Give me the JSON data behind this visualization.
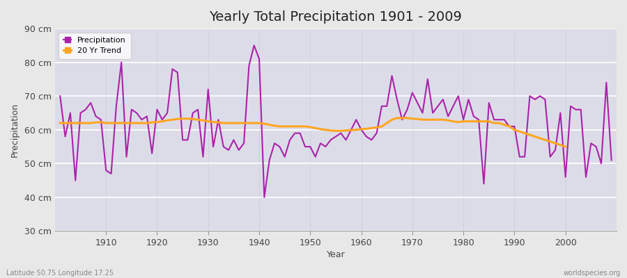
{
  "title": "Yearly Total Precipitation 1901 - 2009",
  "xlabel": "Year",
  "ylabel": "Precipitation",
  "subtitle_left": "Latitude 50.75 Longitude 17.25",
  "subtitle_right": "worldspecies.org",
  "years": [
    1901,
    1902,
    1903,
    1904,
    1905,
    1906,
    1907,
    1908,
    1909,
    1910,
    1911,
    1912,
    1913,
    1914,
    1915,
    1916,
    1917,
    1918,
    1919,
    1920,
    1921,
    1922,
    1923,
    1924,
    1925,
    1926,
    1927,
    1928,
    1929,
    1930,
    1931,
    1932,
    1933,
    1934,
    1935,
    1936,
    1937,
    1938,
    1939,
    1940,
    1941,
    1942,
    1943,
    1944,
    1945,
    1946,
    1947,
    1948,
    1949,
    1950,
    1951,
    1952,
    1953,
    1954,
    1955,
    1956,
    1957,
    1958,
    1959,
    1960,
    1961,
    1962,
    1963,
    1964,
    1965,
    1966,
    1967,
    1968,
    1969,
    1970,
    1971,
    1972,
    1973,
    1974,
    1975,
    1976,
    1977,
    1978,
    1979,
    1980,
    1981,
    1982,
    1983,
    1984,
    1985,
    1986,
    1987,
    1988,
    1989,
    1990,
    1991,
    1992,
    1993,
    1994,
    1995,
    1996,
    1997,
    1998,
    1999,
    2000,
    2001,
    2002,
    2003,
    2004,
    2005,
    2006,
    2007,
    2008,
    2009
  ],
  "precipitation": [
    70,
    58,
    65,
    45,
    65,
    66,
    68,
    64,
    63,
    48,
    47,
    67,
    80,
    52,
    66,
    65,
    63,
    64,
    53,
    66,
    63,
    65,
    78,
    77,
    57,
    57,
    65,
    66,
    52,
    72,
    55,
    63,
    55,
    54,
    57,
    54,
    56,
    79,
    85,
    81,
    40,
    51,
    56,
    55,
    52,
    57,
    59,
    59,
    55,
    55,
    52,
    56,
    55,
    57,
    58,
    59,
    57,
    60,
    63,
    60,
    58,
    57,
    59,
    67,
    67,
    76,
    69,
    63,
    66,
    71,
    68,
    65,
    75,
    65,
    67,
    69,
    64,
    67,
    70,
    63,
    69,
    64,
    63,
    44,
    68,
    63,
    63,
    63,
    61,
    61,
    52,
    52,
    70,
    69,
    70,
    69,
    52,
    54,
    65,
    46,
    67,
    66,
    66,
    46,
    56,
    55,
    50,
    74,
    51
  ],
  "trend": [
    62.0,
    62.0,
    62.0,
    62.0,
    62.0,
    62.0,
    62.0,
    62.2,
    62.3,
    62.0,
    62.0,
    62.0,
    62.0,
    62.0,
    62.0,
    62.0,
    62.0,
    62.0,
    62.2,
    62.3,
    62.5,
    62.8,
    63.0,
    63.2,
    63.3,
    63.3,
    63.2,
    63.0,
    62.8,
    62.5,
    62.3,
    62.2,
    62.0,
    62.0,
    62.0,
    62.0,
    62.0,
    62.0,
    62.0,
    62.0,
    61.8,
    61.5,
    61.2,
    61.0,
    61.0,
    61.0,
    61.0,
    61.0,
    61.0,
    60.8,
    60.5,
    60.2,
    60.0,
    59.8,
    59.7,
    59.7,
    59.8,
    59.9,
    60.0,
    60.2,
    60.3,
    60.5,
    60.7,
    61.0,
    62.0,
    63.0,
    63.5,
    63.5,
    63.5,
    63.3,
    63.2,
    63.0,
    63.0,
    63.0,
    63.0,
    63.0,
    62.8,
    62.5,
    62.3,
    62.5,
    62.5,
    62.5,
    62.5,
    62.5,
    62.5,
    62.0,
    62.0,
    61.5,
    61.0,
    60.0,
    59.5,
    59.0,
    58.5,
    58.0,
    57.5,
    57.0,
    56.5,
    56.0,
    55.5,
    55.0,
    null,
    null,
    null,
    null,
    null,
    null,
    null,
    null,
    null
  ],
  "precip_color": "#AA22AA",
  "trend_color": "#FFA520",
  "fig_bg_color": "#E8E8E8",
  "plot_bg_color": "#DCDCE8",
  "grid_color_h": "#FFFFFF",
  "grid_color_v": "#CCCCDD",
  "ylim": [
    30,
    90
  ],
  "yticks": [
    30,
    40,
    50,
    60,
    70,
    80,
    90
  ],
  "ytick_labels": [
    "30 cm",
    "40 cm",
    "50 cm",
    "60 cm",
    "70 cm",
    "80 cm",
    "90 cm"
  ],
  "xticks": [
    1910,
    1920,
    1930,
    1940,
    1950,
    1960,
    1970,
    1980,
    1990,
    2000
  ],
  "xlim": [
    1900,
    2010
  ],
  "title_fontsize": 14,
  "axis_label_fontsize": 9,
  "tick_label_fontsize": 9
}
